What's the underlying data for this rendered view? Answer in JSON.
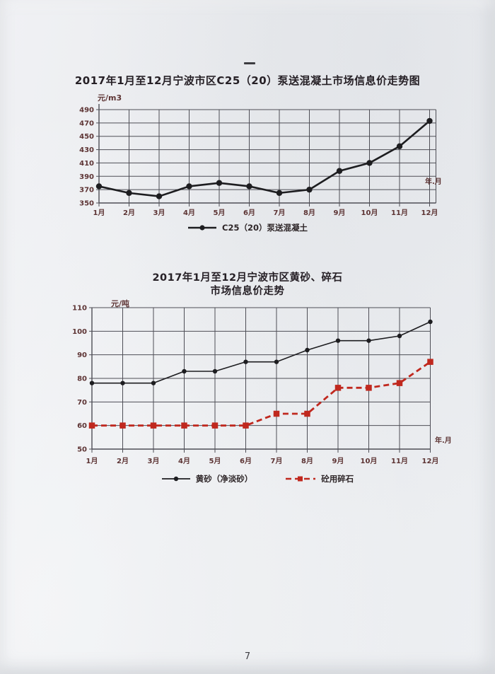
{
  "page": {
    "top_mark": "一",
    "number": "7"
  },
  "chart_data": [
    {
      "type": "line",
      "title": "2017年1月至12月宁波市区C25（20）泵送混凝土市场信息价走势图",
      "y_unit": "元/m3",
      "x_unit": "年.月",
      "categories": [
        "1月",
        "2月",
        "3月",
        "4月",
        "5月",
        "6月",
        "7月",
        "8月",
        "9月",
        "10月",
        "11月",
        "12月"
      ],
      "ylim": [
        350,
        490
      ],
      "ytick_step": 20,
      "grid": true,
      "legend_position": "bottom",
      "series": [
        {
          "name": "C25（20）泵送混凝土",
          "values": [
            375,
            365,
            360,
            375,
            380,
            375,
            365,
            370,
            398,
            410,
            435,
            473
          ],
          "color": "#1d1d20",
          "line_style": "solid",
          "marker": "circle"
        }
      ]
    },
    {
      "type": "line",
      "title": "2017年1月至12月宁波市区黄砂、碎石",
      "subtitle": "市场信息价走势",
      "y_unit": "元/吨",
      "x_unit": "年.月",
      "categories": [
        "1月",
        "2月",
        "3月",
        "4月",
        "5月",
        "6月",
        "7月",
        "8月",
        "9月",
        "10月",
        "11月",
        "12月"
      ],
      "ylim": [
        50,
        110
      ],
      "ytick_step": 10,
      "grid": true,
      "legend_position": "bottom",
      "series": [
        {
          "name": "黄砂（净淡砂）",
          "values": [
            78,
            78,
            78,
            83,
            83,
            87,
            87,
            92,
            96,
            96,
            98,
            104
          ],
          "color": "#1d1d20",
          "line_style": "solid",
          "marker": "circle"
        },
        {
          "name": "砼用碎石",
          "values": [
            60,
            60,
            60,
            60,
            60,
            60,
            65,
            65,
            76,
            76,
            78,
            87
          ],
          "color": "#c0281e",
          "line_style": "dashed",
          "marker": "square"
        }
      ]
    }
  ],
  "colors": {
    "grid": "#4e4e56",
    "tick_label": "#5d3434",
    "title": "#262026",
    "paper": "#ecedf0",
    "series_black": "#1d1d20",
    "series_red": "#c0281e"
  }
}
